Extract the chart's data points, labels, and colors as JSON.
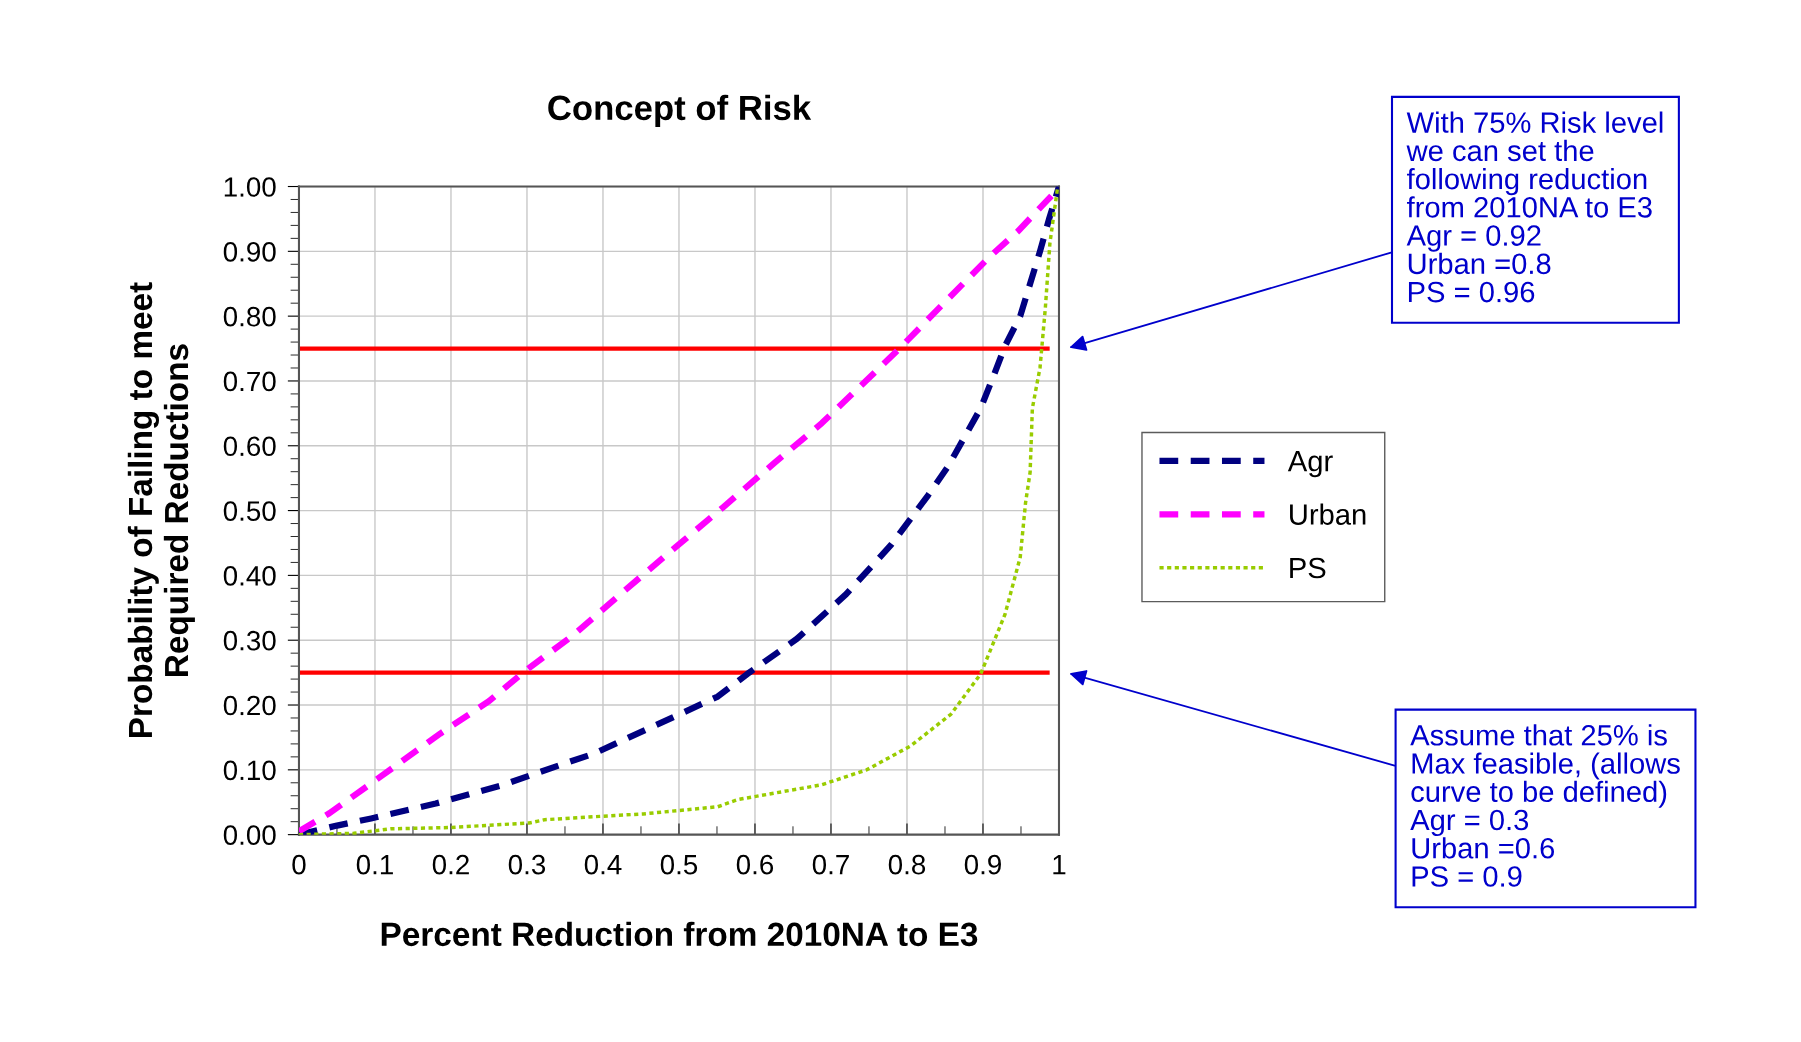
{
  "chart_data": {
    "type": "line",
    "title": "Concept of Risk",
    "xlabel": "Percent Reduction from 2010NA to E3",
    "ylabel": "Probability of Failing to meet\nRequired Reductions",
    "xlim": [
      0,
      1
    ],
    "ylim": [
      0,
      1
    ],
    "xticks": [
      {
        "value": 0,
        "label": "0"
      },
      0.1,
      0.2,
      0.3,
      0.4,
      0.5,
      0.6,
      0.7,
      0.8,
      0.9,
      {
        "value": 1,
        "label": "1"
      }
    ],
    "yticks": [
      {
        "value": 0,
        "label": "0.00"
      },
      {
        "value": 0.1,
        "label": "0.10"
      },
      {
        "value": 0.2,
        "label": "0.20"
      },
      {
        "value": 0.3,
        "label": "0.30"
      },
      {
        "value": 0.4,
        "label": "0.40"
      },
      {
        "value": 0.5,
        "label": "0.50"
      },
      {
        "value": 0.6,
        "label": "0.60"
      },
      {
        "value": 0.7,
        "label": "0.70"
      },
      {
        "value": 0.8,
        "label": "0.80"
      },
      {
        "value": 0.9,
        "label": "0.90"
      },
      {
        "value": 1,
        "label": "1.00"
      }
    ],
    "grid": true,
    "legend": "right",
    "marker": "none",
    "series": [
      {
        "name": "Agr",
        "color": "#000080",
        "line_style": "dashed",
        "x": [
          0,
          0.05,
          0.095,
          0.18,
          0.264,
          0.35,
          0.388,
          0.466,
          0.551,
          0.59,
          0.655,
          0.72,
          0.779,
          0.828,
          0.854,
          0.897,
          0.913,
          0.929,
          0.949,
          0.962,
          0.975,
          0.987,
          1.0
        ],
        "values": [
          0,
          0.014,
          0.025,
          0.048,
          0.075,
          0.11,
          0.125,
          0.167,
          0.213,
          0.248,
          0.302,
          0.371,
          0.447,
          0.524,
          0.568,
          0.658,
          0.705,
          0.754,
          0.8,
          0.85,
          0.9,
          0.95,
          1.0
        ]
      },
      {
        "name": "Urban",
        "color": "#ff00ff",
        "line_style": "dashed",
        "x": [
          0,
          0.04,
          0.108,
          0.186,
          0.25,
          0.297,
          0.36,
          0.427,
          0.496,
          0.558,
          0.626,
          0.688,
          0.753,
          0.79,
          0.851,
          0.91,
          0.946,
          1.0
        ],
        "values": [
          0.005,
          0.033,
          0.09,
          0.156,
          0.206,
          0.252,
          0.307,
          0.375,
          0.444,
          0.505,
          0.574,
          0.635,
          0.708,
          0.75,
          0.823,
          0.893,
          0.931,
          0.998
        ]
      },
      {
        "name": "PS",
        "color": "#99cc00",
        "line_style": "dotted",
        "x": [
          0,
          0.072,
          0.121,
          0.199,
          0.303,
          0.323,
          0.408,
          0.453,
          0.551,
          0.577,
          0.688,
          0.747,
          0.805,
          0.858,
          0.897,
          0.929,
          0.949,
          0.956,
          0.962,
          0.965,
          0.975,
          0.982,
          0.988,
          0.998
        ],
        "values": [
          0,
          0.002,
          0.009,
          0.011,
          0.018,
          0.023,
          0.029,
          0.032,
          0.043,
          0.054,
          0.077,
          0.1,
          0.137,
          0.186,
          0.248,
          0.34,
          0.428,
          0.512,
          0.559,
          0.658,
          0.72,
          0.812,
          0.912,
          0.997
        ]
      }
    ],
    "ref_lines": [
      {
        "axis": "y",
        "value": 0.75,
        "color": "#ff0000"
      },
      {
        "axis": "y",
        "value": 0.25,
        "color": "#ff0000"
      }
    ],
    "annotations": [
      "With 75% Risk level\nwe can set the\nfollowing reduction\nfrom 2010NA to E3\nAgr = 0.92\nUrban =0.8\nPS = 0.96",
      "Assume that 25% is\nMax feasible, (allows\ncurve to be defined)\nAgr = 0.3\nUrban =0.6\nPS = 0.9"
    ]
  }
}
